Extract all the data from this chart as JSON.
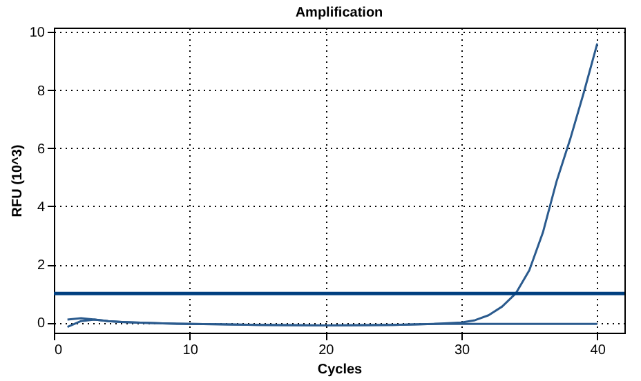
{
  "chart_data": {
    "type": "line",
    "title": "Amplification",
    "xlabel": "Cycles",
    "ylabel": "RFU (10^3)",
    "xlim": [
      0,
      42
    ],
    "ylim": [
      -0.35,
      10.15
    ],
    "xticks": [
      0,
      10,
      20,
      30,
      40
    ],
    "yticks": [
      0,
      2,
      4,
      6,
      8,
      10
    ],
    "grid": true,
    "legend": false,
    "x": [
      1,
      2,
      3,
      4,
      5,
      6,
      8,
      10,
      12,
      15,
      20,
      25,
      28,
      30,
      31,
      32,
      33,
      34,
      35,
      36,
      37,
      38,
      39,
      40
    ],
    "series": [
      {
        "color": "#2b5b8e",
        "values": [
          0.1,
          0.15,
          0.1,
          0.05,
          0.02,
          0.0,
          -0.03,
          -0.05,
          -0.06,
          -0.08,
          -0.1,
          -0.08,
          -0.05,
          0.0,
          0.08,
          0.25,
          0.55,
          1.0,
          1.8,
          3.1,
          4.85,
          6.3,
          7.9,
          9.6
        ]
      },
      {
        "color": "#2b5b8e",
        "values": [
          -0.15,
          0.05,
          0.1,
          0.05,
          0.02,
          0.0,
          -0.03,
          -0.05,
          -0.06,
          -0.08,
          -0.1,
          -0.08,
          -0.05,
          -0.05,
          -0.05,
          -0.05,
          -0.05,
          -0.05,
          -0.05,
          -0.05,
          -0.05,
          -0.05,
          -0.05,
          -0.05
        ]
      }
    ],
    "ref_lines": [
      {
        "axis": "y",
        "value": 1,
        "color": "#003f7f"
      }
    ]
  }
}
